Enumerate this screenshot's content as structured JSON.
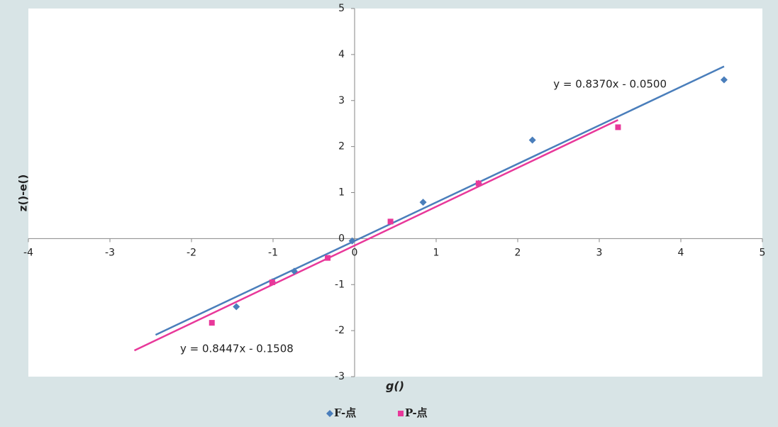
{
  "chart_data": {
    "type": "scatter",
    "x_label": "g()",
    "y_label": "z()-e()",
    "xlim": [
      -4,
      5
    ],
    "ylim": [
      -3,
      5
    ],
    "xticks": [
      -4,
      -3,
      -2,
      -1,
      0,
      1,
      2,
      3,
      4,
      5
    ],
    "yticks": [
      -3,
      -2,
      -1,
      0,
      1,
      2,
      3,
      4,
      5
    ],
    "grid": false,
    "legend": "bottom",
    "series": [
      {
        "name": "F-点",
        "color": "#4a7ebb",
        "marker": "diamond",
        "x": [
          -1.45,
          -1.01,
          -0.74,
          -0.03,
          0.84,
          1.52,
          2.18,
          4.53
        ],
        "y": [
          -1.48,
          -0.94,
          -0.71,
          -0.05,
          0.79,
          1.2,
          2.14,
          3.45
        ],
        "trendline": {
          "label": "y = 0.8370x - 0.0500",
          "slope": 0.837,
          "intercept": -0.05,
          "xrange": [
            -2.44,
            4.53
          ]
        }
      },
      {
        "name": "P-点",
        "color": "#e8389a",
        "marker": "square",
        "x": [
          -1.75,
          -1.01,
          -0.33,
          0.44,
          1.52,
          3.23
        ],
        "y": [
          -1.83,
          -0.95,
          -0.42,
          0.37,
          1.2,
          2.42
        ],
        "trendline": {
          "label": "y = 0.8447x - 0.1508",
          "slope": 0.8447,
          "intercept": -0.1508,
          "xrange": [
            -2.7,
            3.23
          ]
        }
      }
    ]
  }
}
